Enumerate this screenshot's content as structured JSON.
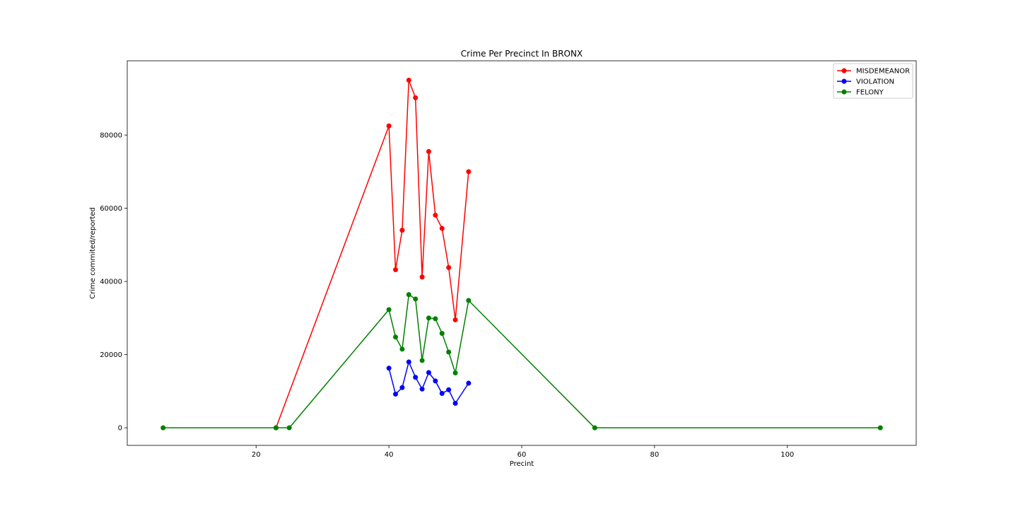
{
  "chart_data": {
    "type": "line",
    "title": "Crime Per Precinct In BRONX",
    "xlabel": "Precint",
    "ylabel": "Crime commited/reported",
    "xlim": [
      0.6,
      119.4
    ],
    "ylim": [
      -4800,
      100300
    ],
    "xticks": [
      20,
      40,
      60,
      80,
      100
    ],
    "yticks": [
      0,
      20000,
      40000,
      60000,
      80000
    ],
    "grid": false,
    "legend_position": "top-right",
    "series": [
      {
        "name": "MISDEMEANOR",
        "color": "#ff0000",
        "x": [
          23,
          40,
          41,
          42,
          43,
          44,
          45,
          46,
          47,
          48,
          49,
          50,
          52
        ],
        "y": [
          0,
          82500,
          43200,
          54000,
          95000,
          90200,
          41200,
          75500,
          58100,
          54500,
          43800,
          29500,
          70000
        ]
      },
      {
        "name": "VIOLATION",
        "color": "#0000ff",
        "x": [
          40,
          41,
          42,
          43,
          44,
          45,
          46,
          47,
          48,
          49,
          50,
          52
        ],
        "y": [
          16300,
          9200,
          11000,
          18000,
          13800,
          10600,
          15100,
          12800,
          9400,
          10400,
          6700,
          12200
        ]
      },
      {
        "name": "FELONY",
        "color": "#008000",
        "x": [
          6,
          23,
          25,
          40,
          41,
          42,
          43,
          44,
          45,
          46,
          47,
          48,
          49,
          50,
          52,
          71,
          114
        ],
        "y": [
          0,
          0,
          0,
          32300,
          24800,
          21500,
          36400,
          35200,
          18400,
          30000,
          29800,
          25800,
          20700,
          15000,
          34800,
          0,
          0
        ]
      }
    ]
  }
}
